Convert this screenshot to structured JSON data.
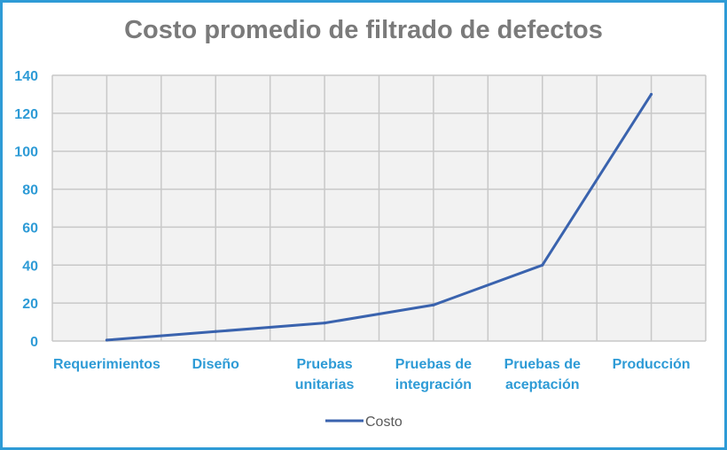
{
  "chart_data": {
    "type": "line",
    "title": "Costo promedio de filtrado de defectos",
    "categories": [
      "Requerimientos",
      "Diseño",
      "Pruebas unitarias",
      "Pruebas de integración",
      "Pruebas de aceptación",
      "Producción"
    ],
    "category_lines": [
      [
        "Requerimientos"
      ],
      [
        "Diseño"
      ],
      [
        "Pruebas",
        "unitarias"
      ],
      [
        "Pruebas de",
        "integración"
      ],
      [
        "Pruebas de",
        "aceptación"
      ],
      [
        "Producción"
      ]
    ],
    "series": [
      {
        "name": "Costo",
        "x": [
          0,
          1,
          2,
          3,
          4,
          5
        ],
        "values": [
          0.5,
          5,
          9.5,
          19,
          40,
          130
        ]
      }
    ],
    "x_labeled_positions": [
      0,
      2,
      4,
      6,
      8,
      10
    ],
    "x_grid_positions": [
      0,
      1,
      2,
      3,
      4,
      5,
      6,
      7,
      8,
      9,
      10,
      11
    ],
    "ylim": [
      0,
      140
    ],
    "yticks": [
      0,
      20,
      40,
      60,
      80,
      100,
      120,
      140
    ],
    "grid": true,
    "legend": "bottom",
    "colors": {
      "line": "#3A63AE",
      "axis_text": "#2E9BD6",
      "grid": "#c8c8c8",
      "plot_bg": "#f2f2f2",
      "border": "#2E9BD6",
      "title": "#7a7a7a"
    }
  }
}
